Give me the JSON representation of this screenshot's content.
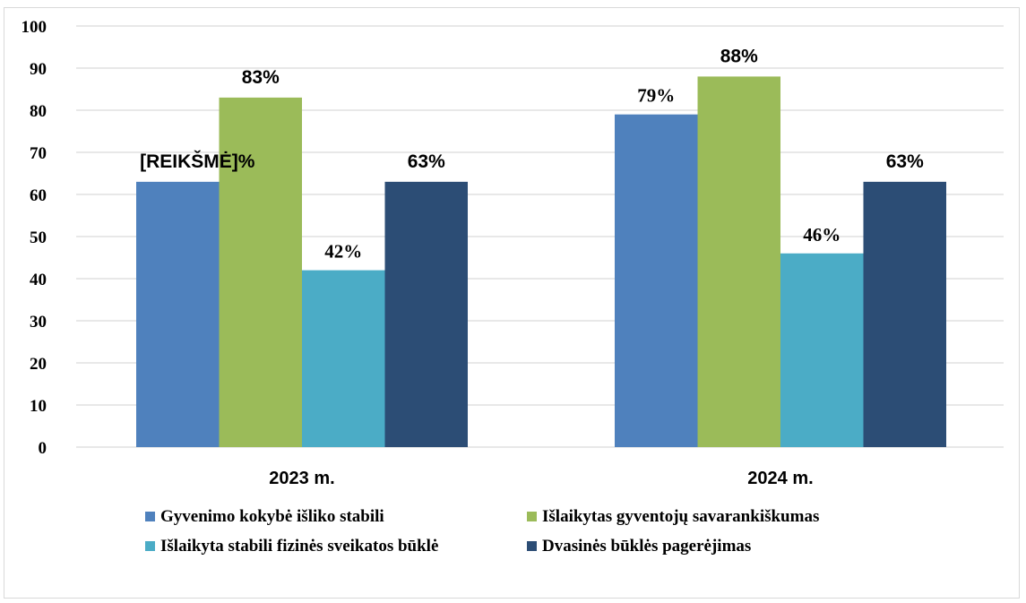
{
  "chart_data": {
    "type": "bar",
    "categories": [
      "2023 m.",
      "2024 m."
    ],
    "series": [
      {
        "name": "Gyvenimo kokybė išliko stabili",
        "values": [
          63,
          79
        ],
        "color": "#4f81bd",
        "labels": [
          "[REIKŠMĖ]%",
          "79%"
        ]
      },
      {
        "name": "Išlaikytas gyventojų savarankiškumas",
        "values": [
          83,
          88
        ],
        "color": "#9bbb59",
        "labels": [
          "83%",
          "88%"
        ]
      },
      {
        "name": "Išlaikyta stabili fizinės sveikatos būklė",
        "values": [
          42,
          46
        ],
        "color": "#4bacc6",
        "labels": [
          "42%",
          "46%"
        ]
      },
      {
        "name": "Dvasinės būklės pagerėjimas",
        "values": [
          63,
          63
        ],
        "color": "#2c4d75",
        "labels": [
          "63%",
          "63%"
        ]
      }
    ],
    "ylim": [
      0,
      100
    ],
    "yticks": [
      0,
      10,
      20,
      30,
      40,
      50,
      60,
      70,
      80,
      90,
      100
    ],
    "grid": true,
    "legend_position": "bottom",
    "gridline_color": "#d9d9d9"
  }
}
